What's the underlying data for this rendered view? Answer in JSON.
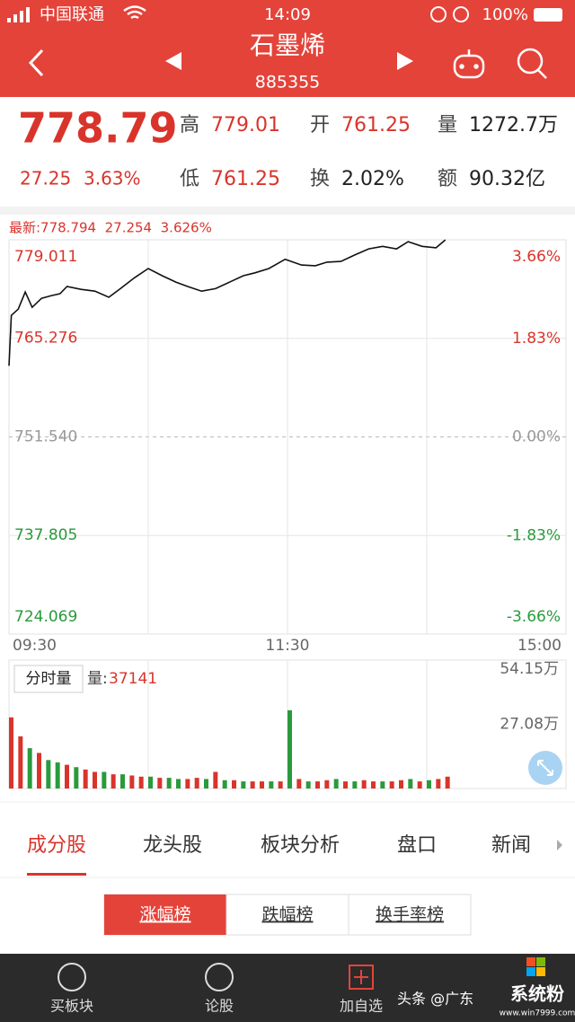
{
  "status_bar": {
    "carrier": "中国联通",
    "time": "14:09",
    "battery": "100%"
  },
  "header": {
    "title": "石墨烯",
    "code": "885355"
  },
  "quote": {
    "price": "778.79",
    "change": "27.25",
    "change_pct": "3.63%",
    "stats": [
      {
        "label": "高",
        "value": "779.01"
      },
      {
        "label": "开",
        "value": "761.25"
      },
      {
        "label": "量",
        "value": "1272.7万"
      },
      {
        "label": "低",
        "value": "761.25"
      },
      {
        "label": "换",
        "value": "2.02%"
      },
      {
        "label": "额",
        "value": "90.32亿"
      }
    ]
  },
  "info_line": "最新:778.794  27.254  3.626%",
  "chart_data": [
    {
      "type": "line",
      "color": "#111111",
      "grid": true,
      "x": [
        0,
        1,
        4,
        7,
        10,
        14,
        18,
        22,
        25,
        31,
        37,
        43,
        48,
        54,
        60,
        66,
        72,
        77,
        83,
        89,
        95,
        101,
        106,
        112,
        119,
        126,
        132,
        137,
        143,
        149,
        155,
        161,
        167,
        172,
        178,
        184,
        188
      ],
      "values": [
        761.45,
        768.47,
        769.35,
        771.73,
        769.6,
        770.85,
        771.2,
        771.5,
        772.5,
        772.1,
        771.85,
        771.0,
        772.2,
        773.7,
        775.0,
        774.0,
        773.1,
        772.5,
        771.85,
        772.2,
        773.1,
        774.0,
        774.4,
        775.0,
        776.3,
        775.5,
        775.4,
        775.9,
        776.0,
        776.9,
        777.75,
        778.1,
        777.75,
        778.75,
        778.1,
        777.9,
        779.0
      ],
      "xlim": [
        0,
        240
      ],
      "xticks": [
        {
          "value": 0,
          "label": "09:30"
        },
        {
          "value": 60,
          "label": null
        },
        {
          "value": 120,
          "label": "11:30"
        },
        {
          "value": 180,
          "label": null
        },
        {
          "value": 240,
          "label": "15:00"
        }
      ],
      "ylim": [
        724.069,
        779.011
      ],
      "yticks": [
        779.011,
        765.276,
        {
          "value": 751.54,
          "label": "751.540"
        },
        737.805,
        724.069
      ],
      "y2lim": [
        -3.66,
        3.66
      ],
      "y2ticks": [
        {
          "value": 3.66,
          "label": "3.66%"
        },
        {
          "value": 1.83,
          "label": "1.83%"
        },
        {
          "value": 0,
          "label": "0.00%"
        },
        {
          "value": -1.83,
          "label": "-1.83%"
        },
        {
          "value": -3.66,
          "label": "-3.66%"
        }
      ],
      "tick_colors": [
        "#d9342b",
        "#d9342b",
        "#999999",
        "#2a9a3c",
        "#2a9a3c"
      ]
    },
    {
      "type": "bar",
      "title": "分时量",
      "latest_label": "量:",
      "latest": 37141,
      "x": [
        0,
        4,
        8,
        12,
        16,
        20,
        24,
        28,
        32,
        36,
        40,
        44,
        48,
        52,
        56,
        60,
        64,
        68,
        72,
        76,
        80,
        84,
        88,
        92,
        96,
        100,
        104,
        108,
        112,
        116,
        120,
        124,
        128,
        132,
        136,
        140,
        144,
        148,
        152,
        156,
        160,
        164,
        168,
        172,
        176,
        180,
        184,
        188
      ],
      "values": [
        300000,
        220000,
        170000,
        150000,
        120000,
        110000,
        100000,
        90000,
        80000,
        70000,
        70000,
        60000,
        60000,
        55000,
        50000,
        50000,
        45000,
        45000,
        40000,
        40000,
        45000,
        40000,
        70000,
        35000,
        35000,
        30000,
        30000,
        30000,
        30000,
        30000,
        330000,
        40000,
        30000,
        30000,
        35000,
        40000,
        30000,
        30000,
        35000,
        30000,
        30000,
        30000,
        35000,
        40000,
        30000,
        35000,
        40000,
        50000
      ],
      "colors": [
        "#d9342b",
        "#d9342b",
        "#2a9a3c",
        "#d9342b",
        "#2a9a3c",
        "#2a9a3c",
        "#d9342b",
        "#2a9a3c",
        "#d9342b",
        "#d9342b",
        "#2a9a3c",
        "#d9342b",
        "#2a9a3c",
        "#d9342b",
        "#d9342b",
        "#2a9a3c",
        "#d9342b",
        "#2a9a3c",
        "#2a9a3c",
        "#d9342b",
        "#d9342b",
        "#2a9a3c",
        "#d9342b",
        "#2a9a3c",
        "#d9342b",
        "#2a9a3c",
        "#d9342b",
        "#d9342b",
        "#2a9a3c",
        "#d9342b",
        "#2a9a3c",
        "#d9342b",
        "#2a9a3c",
        "#d9342b",
        "#d9342b",
        "#2a9a3c",
        "#d9342b",
        "#2a9a3c",
        "#d9342b",
        "#d9342b",
        "#2a9a3c",
        "#d9342b",
        "#d9342b",
        "#2a9a3c",
        "#d9342b",
        "#2a9a3c",
        "#d9342b",
        "#d9342b"
      ],
      "xlim": [
        0,
        240
      ],
      "ylim": [
        0,
        541500
      ],
      "yticks": [
        {
          "value": 541500,
          "label": "54.15万"
        },
        {
          "value": 270800,
          "label": "27.08万"
        }
      ]
    }
  ],
  "tabs": {
    "items": [
      "成分股",
      "龙头股",
      "板块分析",
      "盘口",
      "新闻"
    ],
    "active": 0
  },
  "rank_tabs": {
    "items": [
      "涨幅榜",
      "跌幅榜",
      "换手率榜"
    ],
    "active": 0
  },
  "bottom_nav": [
    "买板块",
    "论股",
    "加自选"
  ],
  "watermark": {
    "source": "头条 @广东",
    "brand": "系统粉",
    "site": "www.win7999.com"
  }
}
